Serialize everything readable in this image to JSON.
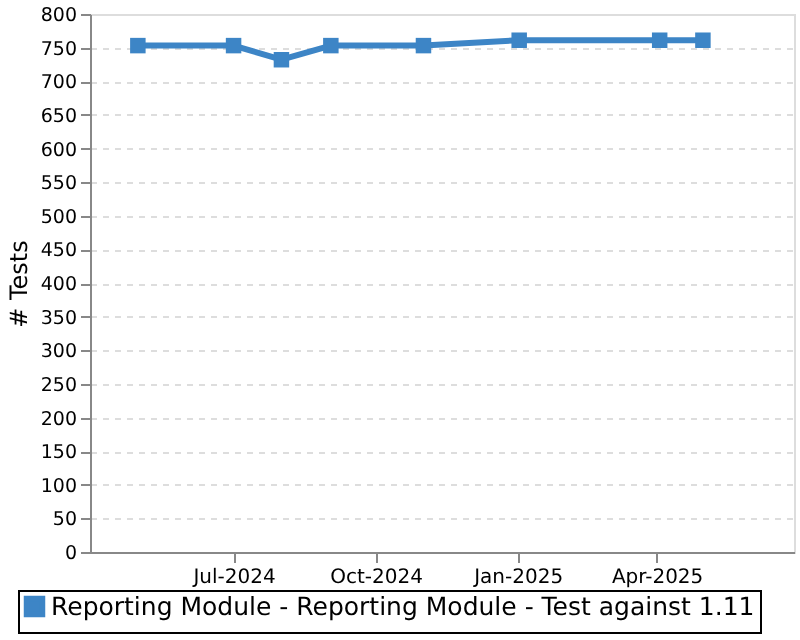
{
  "chart_data": {
    "type": "line",
    "ylabel": "# Tests",
    "x": [
      "2024-04-30",
      "2024-07-01",
      "2024-08-01",
      "2024-09-02",
      "2024-11-01",
      "2025-01-02",
      "2025-04-03",
      "2025-05-01"
    ],
    "series": [
      {
        "name": "Reporting Module - Reporting Module - Test against 1.11",
        "color": "#3d85c6",
        "values": [
          753,
          753,
          732,
          753,
          753,
          761,
          761,
          761
        ]
      }
    ],
    "xlim": [
      "2024-03-30",
      "2025-06-29"
    ],
    "xticks": [
      {
        "value": "2024-07-01",
        "label": "Jul-2024"
      },
      {
        "value": "2024-10-01",
        "label": "Oct-2024"
      },
      {
        "value": "2025-01-01",
        "label": "Jan-2025"
      },
      {
        "value": "2025-04-01",
        "label": "Apr-2025"
      }
    ],
    "ylim": [
      0,
      800
    ],
    "yticks": [
      0,
      50,
      100,
      150,
      200,
      250,
      300,
      350,
      400,
      450,
      500,
      550,
      600,
      650,
      700,
      750,
      800
    ],
    "grid": "y",
    "legend": "bottom",
    "marker": "square",
    "line_style": "solid"
  }
}
